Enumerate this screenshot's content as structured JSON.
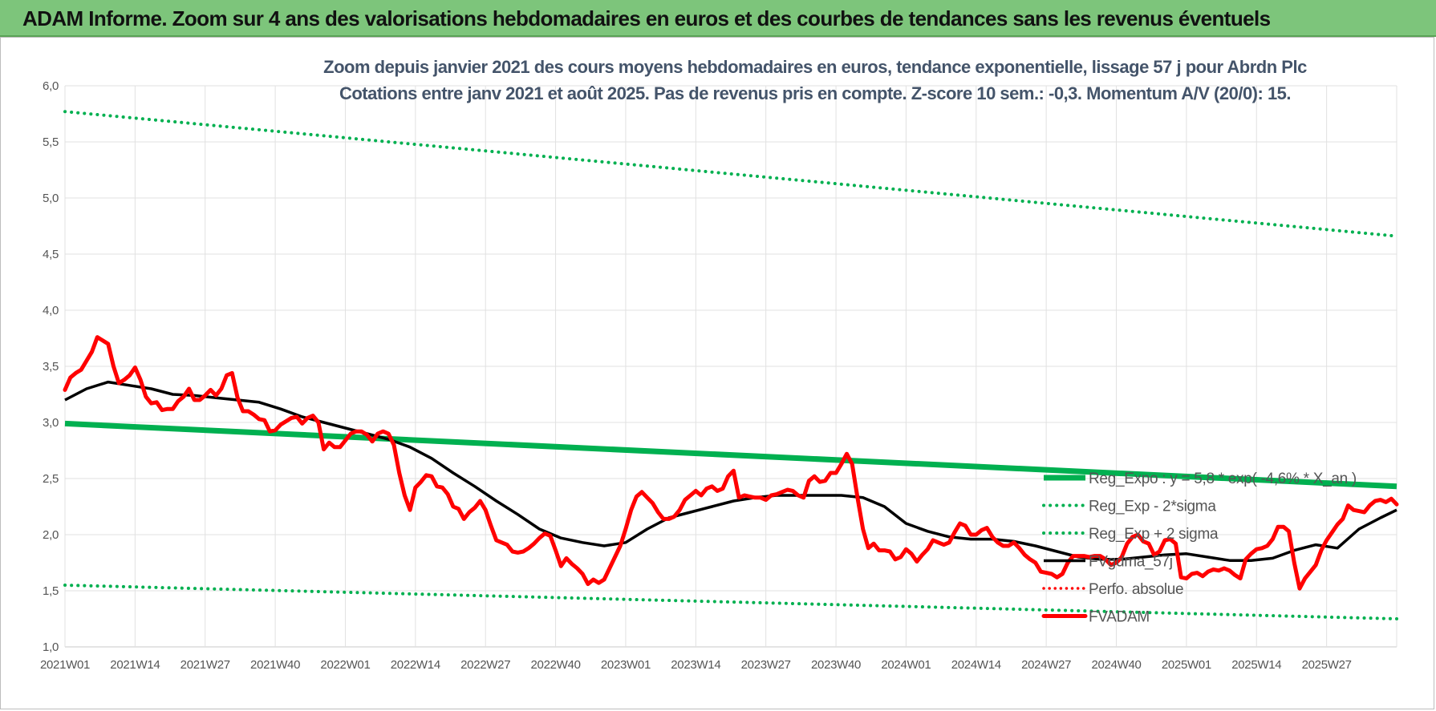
{
  "header": {
    "title": "ADAM Informe. Zoom sur 4 ans des valorisations hebdomadaires en euros et des courbes de tendances sans les revenus éventuels"
  },
  "colors": {
    "banner": "#7dc57b",
    "trend": "#00b050",
    "bands": "#00b050",
    "smooth": "#000000",
    "price": "#ff0000",
    "perfo": "#ff0000"
  },
  "chart_data": {
    "type": "line",
    "subtitle_line1": "Zoom depuis janvier 2021 des cours moyens hebdomadaires en euros, tendance exponentielle, lissage 57 j pour Abrdn Plc",
    "subtitle_line2": "Cotations entre janv 2021 et août 2025. Pas de revenus pris en compte. Z-score 10 sem.: -0,3. Momentum A/V (20/0): 15.",
    "ylim": [
      1.0,
      6.0
    ],
    "y_ticks": [
      "1,0",
      "1,5",
      "2,0",
      "2,5",
      "3,0",
      "3,5",
      "4,0",
      "4,5",
      "5,0",
      "5,5",
      "6,0"
    ],
    "x_ticks": [
      "2021W01",
      "2021W14",
      "2021W27",
      "2021W40",
      "2022W01",
      "2022W14",
      "2022W27",
      "2022W40",
      "2023W01",
      "2023W14",
      "2023W27",
      "2023W40",
      "2024W01",
      "2024W14",
      "2024W27",
      "2024W40",
      "2025W01",
      "2025W14",
      "2025W27"
    ],
    "legend_position": "right",
    "series": [
      {
        "key": "reg",
        "name": "Reg_Expo : y = 5,8 * exp( -4,6% * X_an )",
        "style": "thick-green",
        "x": [
          0,
          247
        ],
        "y": [
          2.99,
          2.43
        ]
      },
      {
        "key": "low",
        "name": "Reg_Exp - 2*sigma",
        "style": "dotted-green",
        "x": [
          0,
          247
        ],
        "y": [
          1.55,
          1.25
        ]
      },
      {
        "key": "high",
        "name": "Reg_Exp + 2 sigma",
        "style": "dotted-green",
        "x": [
          0,
          247
        ],
        "y": [
          5.77,
          4.66
        ]
      },
      {
        "key": "smooth",
        "name": "FVgdma_57j",
        "style": "black",
        "x": [
          0,
          4,
          8,
          12,
          16,
          20,
          24,
          28,
          32,
          36,
          40,
          44,
          48,
          52,
          56,
          60,
          64,
          68,
          72,
          76,
          80,
          84,
          88,
          92,
          96,
          100,
          104,
          108,
          112,
          116,
          120,
          124,
          128,
          132,
          136,
          140,
          144,
          148,
          152,
          156,
          160,
          164,
          168,
          172,
          176,
          180,
          184,
          188,
          192,
          196,
          200,
          204,
          208,
          212,
          216,
          220,
          224,
          228,
          232,
          236,
          240,
          244,
          247
        ],
        "y": [
          3.2,
          3.3,
          3.36,
          3.33,
          3.3,
          3.25,
          3.24,
          3.22,
          3.2,
          3.18,
          3.12,
          3.05,
          3.0,
          2.95,
          2.9,
          2.85,
          2.78,
          2.68,
          2.55,
          2.43,
          2.3,
          2.18,
          2.05,
          1.97,
          1.93,
          1.9,
          1.93,
          2.05,
          2.15,
          2.2,
          2.25,
          2.3,
          2.33,
          2.35,
          2.35,
          2.35,
          2.35,
          2.33,
          2.25,
          2.1,
          2.03,
          1.98,
          1.96,
          1.96,
          1.94,
          1.9,
          1.85,
          1.8,
          1.78,
          1.78,
          1.8,
          1.82,
          1.83,
          1.8,
          1.77,
          1.77,
          1.79,
          1.86,
          1.91,
          1.88,
          2.05,
          2.15,
          2.22
        ]
      },
      {
        "key": "price",
        "name": "FVADAM",
        "style": "thick-red",
        "x": [
          0,
          1,
          2,
          3,
          4,
          5,
          6,
          7,
          8,
          9,
          10,
          11,
          12,
          13,
          14,
          15,
          16,
          17,
          18,
          19,
          20,
          21,
          22,
          23,
          24,
          25,
          26,
          27,
          28,
          29,
          30,
          31,
          32,
          33,
          34,
          35,
          36,
          37,
          38,
          39,
          40,
          41,
          42,
          43,
          44,
          45,
          46,
          47,
          48,
          49,
          50,
          51,
          52,
          53,
          54,
          55,
          56,
          57,
          58,
          59,
          60,
          61,
          62,
          63,
          64,
          65,
          66,
          67,
          68,
          69,
          70,
          71,
          72,
          73,
          74,
          75,
          76,
          77,
          78,
          79,
          80,
          81,
          82,
          83,
          84,
          85,
          86,
          87,
          88,
          89,
          90,
          91,
          92,
          93,
          94,
          95,
          96,
          97,
          98,
          99,
          100,
          101,
          102,
          103,
          104,
          105,
          106,
          107,
          108,
          109,
          110,
          111,
          112,
          113,
          114,
          115,
          116,
          117,
          118,
          119,
          120,
          121,
          122,
          123,
          124,
          125,
          126,
          127,
          128,
          129,
          130,
          131,
          132,
          133,
          134,
          135,
          136,
          137,
          138,
          139,
          140,
          141,
          142,
          143,
          144,
          145,
          146,
          147,
          148,
          149,
          150,
          151,
          152,
          153,
          154,
          155,
          156,
          157,
          158,
          159,
          160,
          161,
          162,
          163,
          164,
          165,
          166,
          167,
          168,
          169,
          170,
          171,
          172,
          173,
          174,
          175,
          176,
          177,
          178,
          179,
          180,
          181,
          182,
          183,
          184,
          185,
          186,
          187,
          188,
          189,
          190,
          191,
          192,
          193,
          194,
          195,
          196,
          197,
          198,
          199,
          200,
          201,
          202,
          203,
          204,
          205,
          206,
          207,
          208,
          209,
          210,
          211,
          212,
          213,
          214,
          215,
          216,
          217,
          218,
          219,
          220,
          221,
          222,
          223,
          224,
          225,
          226,
          227,
          228,
          229,
          230,
          231,
          232,
          233,
          234,
          235,
          236,
          237,
          238,
          239,
          240,
          241,
          242,
          243,
          244,
          245,
          246,
          247
        ],
        "y": [
          3.29,
          3.4,
          3.44,
          3.47,
          3.55,
          3.63,
          3.76,
          3.73,
          3.7,
          3.5,
          3.35,
          3.38,
          3.42,
          3.49,
          3.38,
          3.23,
          3.17,
          3.18,
          3.11,
          3.12,
          3.12,
          3.19,
          3.23,
          3.3,
          3.2,
          3.2,
          3.24,
          3.29,
          3.24,
          3.3,
          3.42,
          3.44,
          3.22,
          3.1,
          3.1,
          3.07,
          3.03,
          3.02,
          2.92,
          2.93,
          2.98,
          3.01,
          3.04,
          3.05,
          2.99,
          3.04,
          3.06,
          3.0,
          2.76,
          2.82,
          2.78,
          2.78,
          2.84,
          2.9,
          2.92,
          2.92,
          2.89,
          2.83,
          2.9,
          2.92,
          2.9,
          2.8,
          2.55,
          2.35,
          2.22,
          2.42,
          2.47,
          2.53,
          2.52,
          2.43,
          2.42,
          2.36,
          2.25,
          2.23,
          2.14,
          2.2,
          2.24,
          2.3,
          2.22,
          2.08,
          1.95,
          1.93,
          1.91,
          1.85,
          1.84,
          1.85,
          1.88,
          1.92,
          1.97,
          2.01,
          1.99,
          1.86,
          1.72,
          1.79,
          1.74,
          1.7,
          1.65,
          1.56,
          1.6,
          1.57,
          1.6,
          1.7,
          1.8,
          1.9,
          2.05,
          2.22,
          2.34,
          2.38,
          2.33,
          2.28,
          2.2,
          2.14,
          2.14,
          2.16,
          2.22,
          2.31,
          2.35,
          2.39,
          2.35,
          2.41,
          2.43,
          2.39,
          2.41,
          2.52,
          2.57,
          2.33,
          2.35,
          2.34,
          2.33,
          2.33,
          2.31,
          2.35,
          2.36,
          2.38,
          2.4,
          2.39,
          2.35,
          2.33,
          2.48,
          2.52,
          2.47,
          2.48,
          2.55,
          2.55,
          2.63,
          2.72,
          2.63,
          2.33,
          2.05,
          1.88,
          1.92,
          1.86,
          1.86,
          1.85,
          1.78,
          1.8,
          1.87,
          1.83,
          1.76,
          1.82,
          1.87,
          1.95,
          1.93,
          1.91,
          1.93,
          2.02,
          2.1,
          2.08,
          2.0,
          2.0,
          2.04,
          2.06,
          1.98,
          1.93,
          1.9,
          1.9,
          1.93,
          1.88,
          1.82,
          1.78,
          1.75,
          1.67,
          1.66,
          1.65,
          1.62,
          1.65,
          1.75,
          1.81,
          1.81,
          1.81,
          1.8,
          1.81,
          1.81,
          1.78,
          1.73,
          1.75,
          1.8,
          1.92,
          1.98,
          2.0,
          1.94,
          1.92,
          1.82,
          1.85,
          1.95,
          1.96,
          1.92,
          1.62,
          1.61,
          1.65,
          1.66,
          1.63,
          1.67,
          1.69,
          1.68,
          1.7,
          1.68,
          1.64,
          1.61,
          1.78,
          1.83,
          1.87,
          1.88,
          1.9,
          1.96,
          2.07,
          2.07,
          2.03,
          1.75,
          1.52,
          1.61,
          1.67,
          1.73,
          1.86,
          1.95,
          2.02,
          2.09,
          2.14,
          2.26,
          2.22,
          2.21,
          2.2,
          2.26,
          2.3,
          2.31,
          2.29,
          2.32,
          2.27
        ]
      },
      {
        "key": "perfo",
        "name": "Perfo. absolue",
        "style": "dotted-red",
        "x": [],
        "y": []
      }
    ]
  }
}
